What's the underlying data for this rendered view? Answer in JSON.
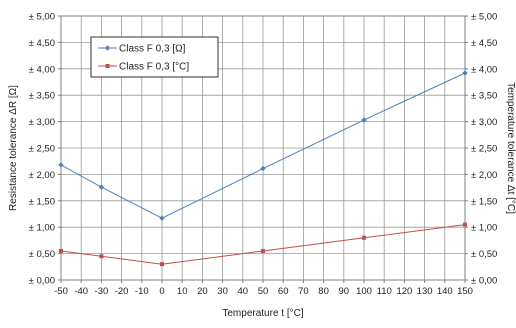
{
  "chart_data": {
    "type": "line",
    "title": "",
    "xlabel": "Temperature t [°C]",
    "ylabel_left": "Resistance tolerance ΔR [Ω]",
    "ylabel_right": "Temperature tolerance Δt [°C]",
    "xlim": [
      -50,
      150
    ],
    "ylim": [
      0,
      5
    ],
    "x_ticks": [
      "-50",
      "-40",
      "-30",
      "-20",
      "-10",
      "0",
      "10",
      "20",
      "30",
      "40",
      "50",
      "60",
      "70",
      "80",
      "90",
      "100",
      "110",
      "120",
      "130",
      "140",
      "150"
    ],
    "y_ticks": [
      "± 0,00",
      "± 0,50",
      "± 1,00",
      "± 1,50",
      "± 2,00",
      "± 2,50",
      "± 3,00",
      "± 3,50",
      "± 4,00",
      "± 4,50",
      "± 5,00"
    ],
    "grid": true,
    "legend_position": "top-left",
    "series": [
      {
        "name": "Class F 0,3 [Ω]",
        "color": "#4f81bd",
        "marker": "diamond",
        "x": [
          -50,
          -30,
          0,
          50,
          100,
          150
        ],
        "y": [
          2.18,
          1.76,
          1.17,
          2.11,
          3.03,
          3.92
        ]
      },
      {
        "name": "Class F 0,3 [°C]",
        "color": "#c0504d",
        "marker": "square",
        "x": [
          -50,
          -30,
          0,
          50,
          100,
          150
        ],
        "y": [
          0.55,
          0.45,
          0.3,
          0.55,
          0.8,
          1.05
        ]
      }
    ]
  }
}
